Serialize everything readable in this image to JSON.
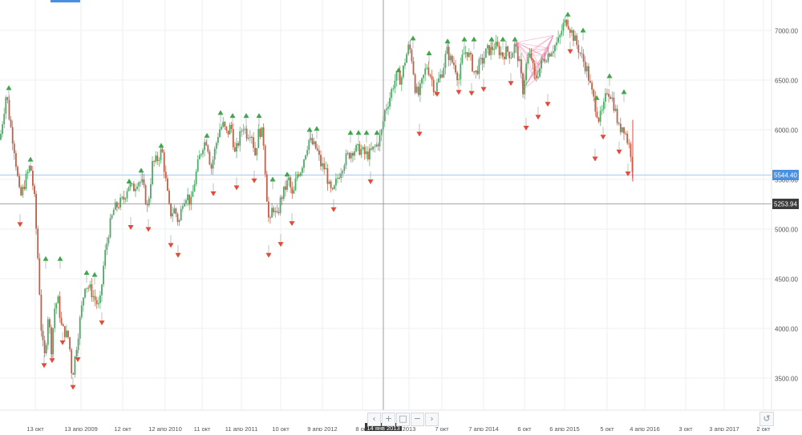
{
  "colors": {
    "up": "#3fa64b",
    "down": "#e5493a",
    "candle_down": "#c06048",
    "candle_up": "#4daa67",
    "grid": "#eef0f2",
    "axis_text": "#555555",
    "price_line_blue": "#4a90e2",
    "crosshair": "#888888",
    "pink_overlay": "#f08ab0"
  },
  "icons": {
    "nav_left": "chevron-left-icon",
    "nav_plus": "plus-icon",
    "nav_square": "square-icon",
    "nav_minus": "minus-icon",
    "nav_right": "chevron-right-icon",
    "reset": "reset-arrow-icon"
  },
  "nav": {
    "left": "‹",
    "plus": "+",
    "square": "□",
    "minus": "−",
    "right": "›",
    "reset": "↺"
  },
  "chart_data": {
    "type": "candlestick",
    "ylim": [
      3250,
      7250
    ],
    "y_ticks": [
      {
        "value": 3500,
        "label": "3500.00"
      },
      {
        "value": 4000,
        "label": "4000.00"
      },
      {
        "value": 4500,
        "label": "4500.00"
      },
      {
        "value": 5000,
        "label": "5000.00"
      },
      {
        "value": 5500,
        "label": "5500.00"
      },
      {
        "value": 6000,
        "label": "6000.00"
      },
      {
        "value": 6500,
        "label": "6500.00"
      },
      {
        "value": 7000,
        "label": "7000.00"
      }
    ],
    "x_ticks": [
      "13 окт",
      "13 апр 2009",
      "12 окт",
      "12 апр 2010",
      "11 окт",
      "11 апр 2011",
      "10 окт",
      "9 апр 2012",
      "8 окт",
      "14 янв 2013",
      "2013",
      "7 окт",
      "7 апр 2014",
      "6 окт",
      "6 апр 2015",
      "5 окт",
      "4 апр 2016",
      "3 окт",
      "3 апр 2017",
      "2 окт"
    ],
    "last_price": {
      "value": 5544.4,
      "label": "5544.40"
    },
    "crosshair_price": {
      "value": 5253.94,
      "label": "5253.94"
    },
    "crosshair_date": "14 янв 2013",
    "path": [
      [
        0,
        5900
      ],
      [
        8,
        6380
      ],
      [
        12,
        6100
      ],
      [
        18,
        5800
      ],
      [
        25,
        5300
      ],
      [
        32,
        5500
      ],
      [
        38,
        5650
      ],
      [
        43,
        5300
      ],
      [
        48,
        4600
      ],
      [
        52,
        3900
      ],
      [
        56,
        3700
      ],
      [
        60,
        4150
      ],
      [
        64,
        3800
      ],
      [
        68,
        4200
      ],
      [
        72,
        4300
      ],
      [
        77,
        4000
      ],
      [
        82,
        3950
      ],
      [
        86,
        3900
      ],
      [
        90,
        3500
      ],
      [
        95,
        3800
      ],
      [
        100,
        4100
      ],
      [
        106,
        4450
      ],
      [
        112,
        4400
      ],
      [
        118,
        4300
      ],
      [
        124,
        4200
      ],
      [
        130,
        4700
      ],
      [
        136,
        5000
      ],
      [
        142,
        5200
      ],
      [
        148,
        5250
      ],
      [
        154,
        5300
      ],
      [
        160,
        5450
      ],
      [
        166,
        5400
      ],
      [
        172,
        5500
      ],
      [
        178,
        5450
      ],
      [
        184,
        5200
      ],
      [
        190,
        5650
      ],
      [
        196,
        5700
      ],
      [
        202,
        5800
      ],
      [
        208,
        5400
      ],
      [
        212,
        5150
      ],
      [
        218,
        5200
      ],
      [
        223,
        5050
      ],
      [
        228,
        5300
      ],
      [
        233,
        5350
      ],
      [
        238,
        5250
      ],
      [
        243,
        5500
      ],
      [
        248,
        5700
      ],
      [
        253,
        5850
      ],
      [
        258,
        5900
      ],
      [
        263,
        5600
      ],
      [
        268,
        5800
      ],
      [
        273,
        6000
      ],
      [
        278,
        6050
      ],
      [
        283,
        5950
      ],
      [
        288,
        6050
      ],
      [
        293,
        5750
      ],
      [
        298,
        5900
      ],
      [
        303,
        6050
      ],
      [
        308,
        5950
      ],
      [
        313,
        6000
      ],
      [
        318,
        5750
      ],
      [
        323,
        6000
      ],
      [
        328,
        5950
      ],
      [
        333,
        5300
      ],
      [
        336,
        5000
      ],
      [
        340,
        5250
      ],
      [
        345,
        5100
      ],
      [
        350,
        5300
      ],
      [
        355,
        5400
      ],
      [
        360,
        5500
      ],
      [
        365,
        5300
      ],
      [
        370,
        5550
      ],
      [
        375,
        5600
      ],
      [
        380,
        5750
      ],
      [
        385,
        5900
      ],
      [
        390,
        5850
      ],
      [
        395,
        5800
      ],
      [
        400,
        5650
      ],
      [
        406,
        5600
      ],
      [
        411,
        5400
      ],
      [
        415,
        5350
      ],
      [
        420,
        5500
      ],
      [
        425,
        5600
      ],
      [
        430,
        5700
      ],
      [
        435,
        5750
      ],
      [
        440,
        5800
      ],
      [
        445,
        5800
      ],
      [
        450,
        5800
      ],
      [
        455,
        5750
      ],
      [
        460,
        5750
      ],
      [
        465,
        5800
      ],
      [
        470,
        5850
      ],
      [
        475,
        5950
      ],
      [
        480,
        6200
      ],
      [
        485,
        6300
      ],
      [
        490,
        6450
      ],
      [
        495,
        6550
      ],
      [
        500,
        6500
      ],
      [
        505,
        6700
      ],
      [
        510,
        6850
      ],
      [
        514,
        6700
      ],
      [
        518,
        6400
      ],
      [
        522,
        6350
      ],
      [
        527,
        6500
      ],
      [
        532,
        6650
      ],
      [
        537,
        6550
      ],
      [
        542,
        6400
      ],
      [
        547,
        6500
      ],
      [
        552,
        6600
      ],
      [
        557,
        6800
      ],
      [
        562,
        6700
      ],
      [
        567,
        6650
      ],
      [
        572,
        6500
      ],
      [
        577,
        6750
      ],
      [
        582,
        6800
      ],
      [
        587,
        6700
      ],
      [
        592,
        6550
      ],
      [
        597,
        6650
      ],
      [
        602,
        6700
      ],
      [
        607,
        6800
      ],
      [
        612,
        6800
      ],
      [
        617,
        6850
      ],
      [
        622,
        6800
      ],
      [
        627,
        6750
      ],
      [
        632,
        6800
      ],
      [
        637,
        6750
      ],
      [
        642,
        6850
      ],
      [
        647,
        6700
      ],
      [
        652,
        6400
      ],
      [
        657,
        6700
      ],
      [
        662,
        6750
      ],
      [
        667,
        6500
      ],
      [
        672,
        6600
      ],
      [
        677,
        6700
      ],
      [
        682,
        6750
      ],
      [
        687,
        6800
      ],
      [
        692,
        6850
      ],
      [
        697,
        6900
      ],
      [
        702,
        7050
      ],
      [
        707,
        7100
      ],
      [
        712,
        7000
      ],
      [
        717,
        6900
      ],
      [
        722,
        6800
      ],
      [
        727,
        6700
      ],
      [
        732,
        6600
      ],
      [
        737,
        6400
      ],
      [
        742,
        6250
      ],
      [
        747,
        6100
      ],
      [
        752,
        6200
      ],
      [
        757,
        6400
      ],
      [
        762,
        6350
      ],
      [
        767,
        6200
      ],
      [
        772,
        6000
      ],
      [
        777,
        6050
      ],
      [
        782,
        5900
      ],
      [
        786,
        5800
      ],
      [
        790,
        5520
      ]
    ],
    "highs": [
      [
        11,
        6400
      ],
      [
        38,
        5680
      ],
      [
        57,
        4680
      ],
      [
        75,
        4680
      ],
      [
        108,
        4540
      ],
      [
        118,
        4520
      ],
      [
        161,
        5460
      ],
      [
        176,
        5570
      ],
      [
        201,
        5820
      ],
      [
        258,
        5920
      ],
      [
        275,
        6150
      ],
      [
        290,
        6120
      ],
      [
        307,
        6120
      ],
      [
        323,
        6120
      ],
      [
        340,
        5480
      ],
      [
        358,
        5530
      ],
      [
        386,
        5980
      ],
      [
        395,
        5990
      ],
      [
        437,
        5950
      ],
      [
        447,
        5950
      ],
      [
        457,
        5950
      ],
      [
        470,
        5950
      ],
      [
        497,
        6580
      ],
      [
        515,
        6900
      ],
      [
        535,
        6750
      ],
      [
        558,
        6870
      ],
      [
        579,
        6890
      ],
      [
        591,
        6890
      ],
      [
        613,
        6890
      ],
      [
        627,
        6890
      ],
      [
        642,
        6890
      ],
      [
        708,
        7140
      ],
      [
        727,
        6980
      ],
      [
        744,
        6300
      ],
      [
        760,
        6520
      ],
      [
        778,
        6360
      ]
    ],
    "lows": [
      [
        25,
        5070
      ],
      [
        55,
        3650
      ],
      [
        65,
        3700
      ],
      [
        78,
        3880
      ],
      [
        91,
        3430
      ],
      [
        97,
        3710
      ],
      [
        127,
        4080
      ],
      [
        163,
        5040
      ],
      [
        185,
        5020
      ],
      [
        213,
        4860
      ],
      [
        222,
        4760
      ],
      [
        266,
        5380
      ],
      [
        295,
        5440
      ],
      [
        317,
        5510
      ],
      [
        335,
        4760
      ],
      [
        350,
        4870
      ],
      [
        364,
        5080
      ],
      [
        416,
        5220
      ],
      [
        462,
        5500
      ],
      [
        523,
        5980
      ],
      [
        545,
        6380
      ],
      [
        572,
        6400
      ],
      [
        588,
        6390
      ],
      [
        603,
        6430
      ],
      [
        637,
        6490
      ],
      [
        656,
        6040
      ],
      [
        671,
        6150
      ],
      [
        683,
        6280
      ],
      [
        711,
        6810
      ],
      [
        742,
        5730
      ],
      [
        752,
        5950
      ],
      [
        772,
        5800
      ],
      [
        783,
        5580
      ]
    ]
  }
}
